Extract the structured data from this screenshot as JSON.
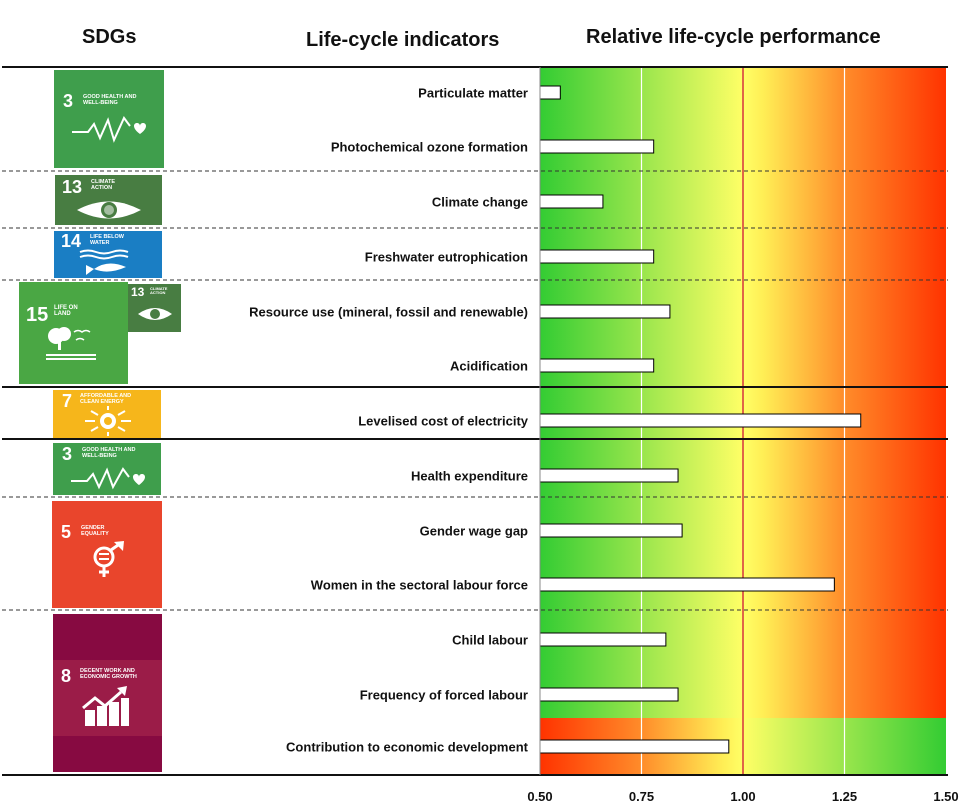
{
  "headers": {
    "sdgs": "SDGs",
    "indicators": "Life-cycle indicators",
    "performance": "Relative life-cycle performance"
  },
  "sdg_icons": [
    {
      "number": "3",
      "title": "GOOD HEALTH AND WELL-BEING",
      "color": "#4c9f38",
      "icon": "heartbeat-icon"
    },
    {
      "number": "13",
      "title": "CLIMATE ACTION",
      "color": "#3f7e44",
      "icon": "eye-globe-icon"
    },
    {
      "number": "14",
      "title": "LIFE BELOW WATER",
      "color": "#0a97d9",
      "icon": "fish-icon"
    },
    {
      "number": "15",
      "title": "LIFE ON LAND",
      "color": "#56c02b",
      "icon": "tree-icon"
    },
    {
      "number": "13",
      "title": "CLIMATE ACTION",
      "color": "#3f7e44",
      "icon": "eye-globe-icon"
    },
    {
      "number": "7",
      "title": "AFFORDABLE AND CLEAN ENERGY",
      "color": "#fcc30b",
      "icon": "sun-power-icon"
    },
    {
      "number": "3",
      "title": "GOOD HEALTH AND WELL-BEING",
      "color": "#4c9f38",
      "icon": "heartbeat-icon"
    },
    {
      "number": "5",
      "title": "GENDER EQUALITY",
      "color": "#ff3a21",
      "icon": "gender-equality-icon"
    },
    {
      "number": "8",
      "title": "DECENT WORK AND ECONOMIC GROWTH",
      "color": "#a21942",
      "icon": "growth-chart-icon"
    }
  ],
  "chart_data": {
    "type": "bar",
    "orientation": "horizontal",
    "title": "Relative life-cycle performance",
    "xlabel": "",
    "ylabel": "Life-cycle indicators",
    "xlim": [
      0.5,
      1.5
    ],
    "xticks": [
      "0.50",
      "0.75",
      "1.00",
      "1.25",
      "1.50"
    ],
    "reference_line": 1.0,
    "reference_color": "#cc0033",
    "gradient_colors": {
      "good": "#33cc33",
      "neutral": "#ffff66",
      "bad": "#ff3300"
    },
    "categories": [
      "Particulate matter",
      "Photochemical ozone formation",
      "Climate change",
      "Freshwater eutrophication",
      "Resource use (mineral, fossil and renewable)",
      "Acidification",
      "Levelised cost of electricity",
      "Health expenditure",
      "Gender wage gap",
      "Women in the sectoral labour force",
      "Child labour",
      "Frequency of forced labour",
      "Contribution to economic development"
    ],
    "values": [
      0.55,
      0.78,
      0.655,
      0.78,
      0.82,
      0.78,
      1.29,
      0.84,
      0.85,
      1.225,
      0.81,
      0.84,
      0.965
    ],
    "reversed_gradient": [
      false,
      false,
      false,
      false,
      false,
      false,
      false,
      false,
      false,
      false,
      false,
      false,
      true
    ],
    "groups": [
      {
        "sdg": "3",
        "indicators": [
          0,
          1
        ]
      },
      {
        "sdg": "13",
        "indicators": [
          2
        ]
      },
      {
        "sdg": "14",
        "indicators": [
          3
        ]
      },
      {
        "sdg": "15 + 13",
        "indicators": [
          4,
          5
        ]
      },
      {
        "sdg": "7",
        "indicators": [
          6
        ]
      },
      {
        "sdg": "3",
        "indicators": [
          7
        ]
      },
      {
        "sdg": "5",
        "indicators": [
          8,
          9
        ]
      },
      {
        "sdg": "8",
        "indicators": [
          10,
          11,
          12
        ]
      }
    ]
  }
}
